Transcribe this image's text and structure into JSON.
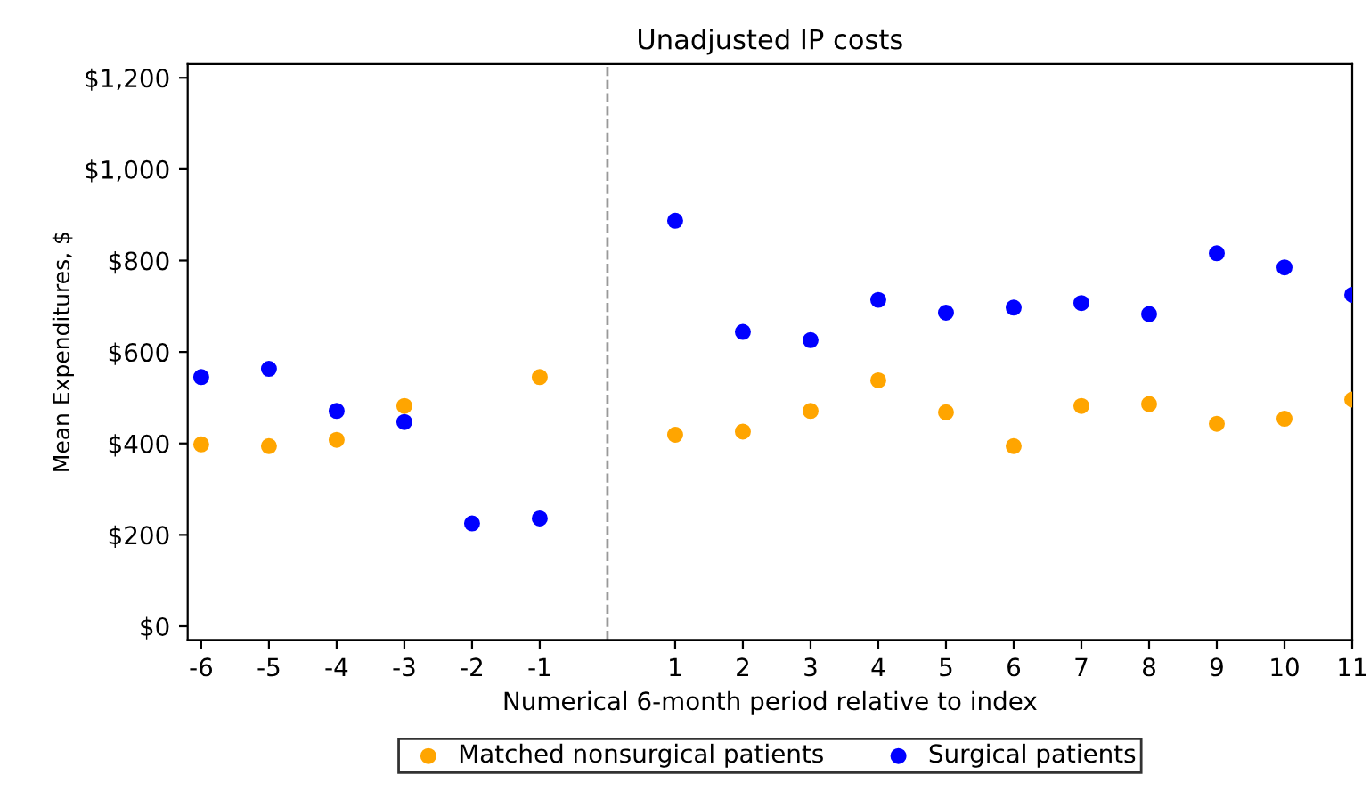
{
  "chart_data": {
    "type": "scatter",
    "title": "Unadjusted IP costs",
    "xlabel": "Numerical 6-month period relative to index",
    "ylabel": "Mean Expenditures, $",
    "x": [
      -6,
      -5,
      -4,
      -3,
      -2,
      -1,
      1,
      2,
      3,
      4,
      5,
      6,
      7,
      8,
      9,
      10,
      11
    ],
    "series": [
      {
        "name": "Matched nonsurgical patients",
        "color": "#ffa500",
        "values": [
          398,
          394,
          408,
          482,
          null,
          545,
          419,
          426,
          471,
          538,
          468,
          394,
          482,
          486,
          443,
          454,
          496
        ]
      },
      {
        "name": "Surgical patients",
        "color": "#0000ff",
        "values": [
          545,
          563,
          471,
          447,
          225,
          236,
          887,
          644,
          626,
          714,
          686,
          697,
          707,
          683,
          816,
          785,
          725
        ]
      }
    ],
    "xlim": [
      -6.2,
      11
    ],
    "xticks": [
      -6,
      -5,
      -4,
      -3,
      -2,
      -1,
      1,
      2,
      3,
      4,
      5,
      6,
      7,
      8,
      9,
      10,
      11
    ],
    "ylim": [
      -30,
      1230
    ],
    "yticks": [
      {
        "value": 0,
        "label": "$0"
      },
      {
        "value": 200,
        "label": "$200"
      },
      {
        "value": 400,
        "label": "$400"
      },
      {
        "value": 600,
        "label": "$600"
      },
      {
        "value": 800,
        "label": "$800"
      },
      {
        "value": 1000,
        "label": "$1,000"
      },
      {
        "value": 1200,
        "label": "$1,200"
      }
    ],
    "ref_lines": [
      {
        "axis": "x",
        "value": 0,
        "color": "#999999",
        "line_style": "dashed"
      }
    ],
    "marker": "circle",
    "grid": false,
    "legend": "bottom"
  }
}
